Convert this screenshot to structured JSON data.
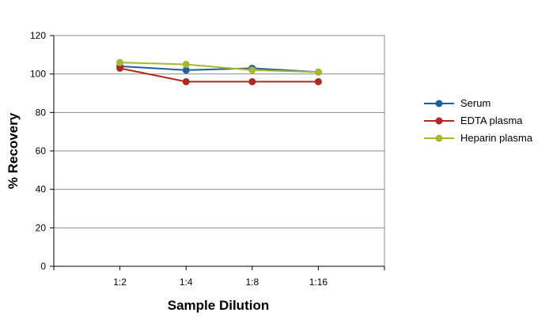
{
  "chart_data": {
    "type": "line",
    "title": "",
    "xlabel": "Sample Dilution",
    "ylabel": "% Recovery",
    "categories": [
      "1:2",
      "1:4",
      "1:8",
      "1:16"
    ],
    "ylim": [
      0,
      120
    ],
    "y_ticks": [
      "0",
      "20",
      "40",
      "60",
      "80",
      "100",
      "120"
    ],
    "grid": true,
    "legend_position": "right",
    "series": [
      {
        "name": "Serum",
        "color": "#1f5fa0",
        "values": [
          104,
          102,
          103,
          101
        ]
      },
      {
        "name": "EDTA plasma",
        "color": "#b0281e",
        "values": [
          103,
          96,
          96,
          96
        ]
      },
      {
        "name": "Heparin plasma",
        "color": "#a8b82a",
        "values": [
          106,
          105,
          102,
          101
        ]
      }
    ]
  }
}
